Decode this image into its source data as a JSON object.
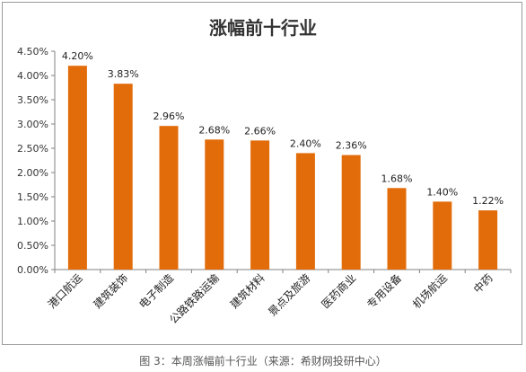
{
  "caption": "图 3：本周涨幅前十行业（来源：希财网投研中心）",
  "chart_data": {
    "type": "bar",
    "title": "涨幅前十行业",
    "categories": [
      "港口航运",
      "建筑装饰",
      "电子制造",
      "公路铁路运输",
      "建筑材料",
      "景点及旅游",
      "医药商业",
      "专用设备",
      "机场航运",
      "中药"
    ],
    "values": [
      4.2,
      3.83,
      2.96,
      2.68,
      2.66,
      2.4,
      2.36,
      1.68,
      1.4,
      1.22
    ],
    "data_labels": [
      "4.20%",
      "3.83%",
      "2.96%",
      "2.68%",
      "2.66%",
      "2.40%",
      "2.36%",
      "1.68%",
      "1.40%",
      "1.22%"
    ],
    "ylim": [
      0,
      4.5
    ],
    "yticks": [
      0,
      0.5,
      1.0,
      1.5,
      2.0,
      2.5,
      3.0,
      3.5,
      4.0,
      4.5
    ],
    "ytick_labels": [
      "0.00%",
      "0.50%",
      "1.00%",
      "1.50%",
      "2.00%",
      "2.50%",
      "3.00%",
      "3.50%",
      "4.00%",
      "4.50%"
    ],
    "xlabel": "",
    "ylabel": "",
    "grid": false,
    "legend": "none",
    "bar_color": "#E36C0A"
  }
}
